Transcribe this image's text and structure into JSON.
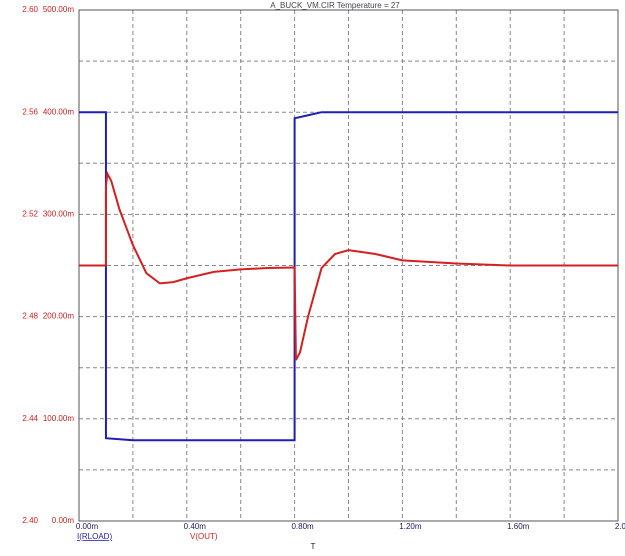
{
  "chart_data": {
    "type": "line",
    "title": "A_BUCK_VM.CIR Temperature = 27",
    "xlabel": "T",
    "xlim": [
      0,
      0.002
    ],
    "xticks": [
      {
        "value": 0,
        "label": "0.00m"
      },
      {
        "value": 0.0004,
        "label": "0.40m"
      },
      {
        "value": 0.0008,
        "label": "0.80m"
      },
      {
        "value": 0.0012,
        "label": "1.20m"
      },
      {
        "value": 0.0016,
        "label": "1.60m"
      },
      {
        "value": 0.002,
        "label": "2.00m"
      }
    ],
    "ylim": [
      0,
      0.5
    ],
    "yticks": [
      {
        "value": 0,
        "label": "0.00m"
      },
      {
        "value": 0.1,
        "label": "100.00m"
      },
      {
        "value": 0.2,
        "label": "200.00m"
      },
      {
        "value": 0.3,
        "label": "300.00m"
      },
      {
        "value": 0.4,
        "label": "400.00m"
      },
      {
        "value": 0.5,
        "label": "500.00m"
      }
    ],
    "y2lim": [
      2.4,
      2.6
    ],
    "y2ticks": [
      {
        "value": 2.4,
        "label": "2.40"
      },
      2.44,
      2.48,
      2.52,
      2.56,
      {
        "value": 2.6,
        "label": "2.60"
      }
    ],
    "grid": true,
    "series": [
      {
        "name": "I(RLOAD)",
        "color": "#1f1fb4",
        "x": [
          0,
          0.0001,
          0.0001,
          0.0002,
          0.0008,
          0.0008,
          0.00085,
          0.0009,
          0.002
        ],
        "values": [
          0.4,
          0.4,
          0.081,
          0.079,
          0.079,
          0.394,
          0.397,
          0.4,
          0.4
        ]
      },
      {
        "name": "V(OUT)",
        "color": "#d42020",
        "axis": "y2",
        "x": [
          0,
          0.0001,
          0.0001,
          0.000105,
          0.00012,
          0.00015,
          0.0002,
          0.00025,
          0.0003,
          0.00035,
          0.0004,
          0.0005,
          0.0006,
          0.0007,
          0.0008,
          0.000805,
          0.00082,
          0.00085,
          0.0009,
          0.00095,
          0.001,
          0.0011,
          0.0012,
          0.0014,
          0.0016,
          0.002
        ],
        "values": [
          2.5,
          2.5,
          2.531,
          2.536,
          2.533,
          2.522,
          2.508,
          2.497,
          2.493,
          2.4935,
          2.495,
          2.4975,
          2.4985,
          2.499,
          2.4992,
          2.463,
          2.466,
          2.48,
          2.499,
          2.5045,
          2.506,
          2.5045,
          2.502,
          2.5008,
          2.5,
          2.5
        ]
      }
    ]
  }
}
